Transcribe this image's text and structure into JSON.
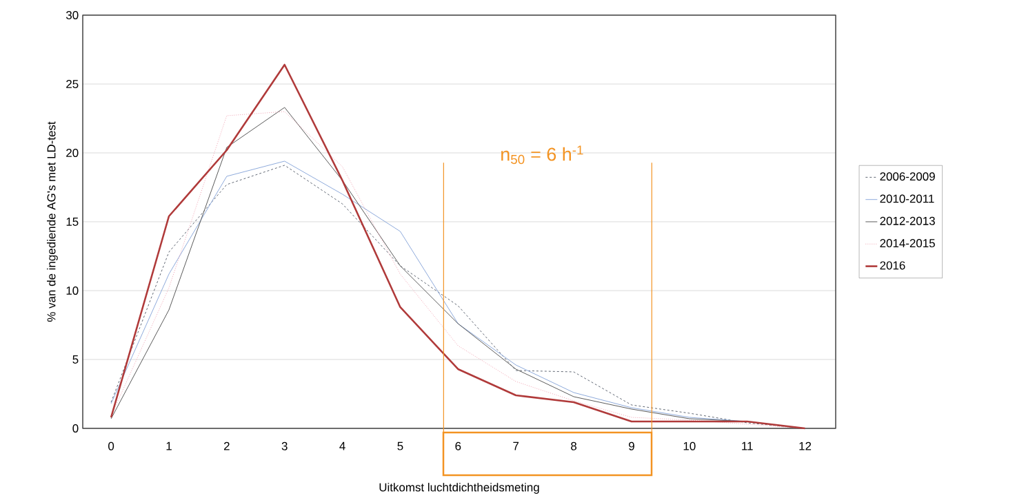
{
  "chart_data": {
    "type": "line",
    "xlabel": "Uitkomst luchtdichtheidsmeting",
    "ylabel": "% van de ingediende AG's met LD-test",
    "x": [
      0,
      1,
      2,
      3,
      4,
      5,
      6,
      7,
      8,
      9,
      10,
      11,
      12
    ],
    "xlim": [
      -0.49,
      12.53
    ],
    "xticks": [
      0,
      1,
      2,
      3,
      4,
      5,
      6,
      7,
      8,
      9,
      10,
      11,
      12
    ],
    "ref_lines": [
      {
        "axis": "x",
        "value": 5.75,
        "color": "#f39322"
      },
      {
        "axis": "x",
        "value": 9.35,
        "color": "#f39322"
      }
    ],
    "series": [
      {
        "name": "2006-2009",
        "color": "#5f6672",
        "line_style": "dashed",
        "values": [
          1.9,
          12.8,
          17.7,
          19.1,
          16.3,
          11.8,
          8.9,
          4.2,
          4.1,
          1.7,
          1.1,
          0.4,
          0.0
        ]
      },
      {
        "name": "2010-2011",
        "color": "#8eaadb",
        "line_style": "solid",
        "values": [
          1.8,
          11.2,
          18.3,
          19.4,
          17.0,
          14.3,
          7.6,
          4.6,
          2.6,
          1.5,
          0.8,
          0.5,
          0.0
        ]
      },
      {
        "name": "2012-2013",
        "color": "#595959",
        "line_style": "solid",
        "values": [
          0.7,
          8.6,
          20.4,
          23.3,
          18.0,
          11.8,
          7.6,
          4.3,
          2.3,
          1.4,
          0.7,
          0.5,
          0.0
        ]
      },
      {
        "name": "2014-2015",
        "color": "#f0a0b0",
        "line_style": "dotted",
        "values": [
          0.9,
          10.2,
          22.7,
          23.0,
          19.0,
          11.2,
          6.0,
          3.4,
          2.0,
          0.8,
          0.6,
          0.3,
          0.0
        ]
      },
      {
        "name": "2016",
        "color": "#b03a3a",
        "line_style": "solid",
        "values": [
          0.8,
          15.4,
          20.2,
          26.4,
          18.0,
          8.8,
          4.3,
          2.4,
          1.9,
          0.5,
          0.5,
          0.5,
          0.0
        ]
      }
    ],
    "ylim": [
      0,
      30
    ],
    "yticks": [
      0,
      5,
      10,
      15,
      20,
      25,
      30
    ],
    "grid": "y",
    "legend": "right",
    "marker": "none",
    "annotations": [
      "n$_{50}$ = 6 h$^{-1}$"
    ]
  }
}
